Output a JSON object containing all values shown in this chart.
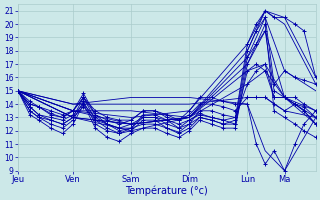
{
  "title": "Température (°c)",
  "bg_color": "#cce8e8",
  "grid_color": "#aacccc",
  "line_color": "#0000aa",
  "ylim": [
    9,
    21.5
  ],
  "yticks": [
    9,
    10,
    11,
    12,
    13,
    14,
    15,
    16,
    17,
    18,
    19,
    20,
    21
  ],
  "day_labels": [
    "Jeu",
    "Ven",
    "Sam",
    "Dim",
    "Lun",
    "Ma"
  ],
  "day_x": [
    0,
    0.185,
    0.38,
    0.575,
    0.77,
    0.895
  ],
  "series": [
    {
      "x": [
        0.0,
        0.185,
        0.38,
        0.575,
        0.77,
        0.83,
        0.895,
        1.0
      ],
      "y": [
        15.0,
        13.5,
        13.0,
        13.5,
        18.5,
        21.0,
        20.5,
        16.0
      ]
    },
    {
      "x": [
        0.0,
        0.185,
        0.38,
        0.575,
        0.77,
        0.83,
        0.895,
        1.0
      ],
      "y": [
        15.0,
        13.0,
        12.5,
        13.0,
        18.0,
        21.0,
        20.0,
        15.5
      ]
    },
    {
      "x": [
        0.0,
        0.185,
        0.38,
        0.575,
        0.77,
        0.83,
        0.895,
        1.0
      ],
      "y": [
        15.0,
        13.0,
        12.5,
        13.0,
        17.5,
        20.5,
        16.5,
        15.0
      ]
    },
    {
      "x": [
        0.0,
        0.185,
        0.38,
        0.575,
        0.77,
        0.83,
        0.895,
        1.0
      ],
      "y": [
        15.0,
        13.0,
        12.0,
        13.0,
        17.0,
        19.5,
        14.5,
        13.5
      ]
    },
    {
      "x": [
        0.0,
        0.185,
        0.38,
        0.575,
        0.77,
        0.83,
        0.895,
        1.0
      ],
      "y": [
        15.0,
        13.5,
        12.5,
        13.0,
        16.5,
        17.0,
        14.5,
        13.0
      ]
    },
    {
      "x": [
        0.0,
        0.185,
        0.38,
        0.575,
        0.77,
        0.83,
        0.895,
        1.0
      ],
      "y": [
        15.0,
        13.5,
        13.5,
        13.0,
        15.5,
        16.5,
        14.5,
        12.5
      ]
    },
    {
      "x": [
        0.0,
        0.185,
        0.38,
        0.575,
        0.77,
        0.83,
        0.895,
        1.0
      ],
      "y": [
        15.0,
        14.0,
        14.0,
        14.0,
        14.5,
        14.5,
        13.5,
        13.0
      ]
    },
    {
      "x": [
        0.0,
        0.185,
        0.38,
        0.575,
        0.77,
        0.83,
        0.895,
        1.0
      ],
      "y": [
        15.0,
        14.0,
        14.5,
        14.5,
        14.0,
        10.5,
        9.0,
        13.0
      ]
    }
  ],
  "detail_series": [
    {
      "x": [
        0.0,
        0.04,
        0.07,
        0.11,
        0.15,
        0.185,
        0.22,
        0.26,
        0.3,
        0.34,
        0.38,
        0.42,
        0.46,
        0.5,
        0.54,
        0.575,
        0.61,
        0.65,
        0.69,
        0.73,
        0.77,
        0.8,
        0.83,
        0.86,
        0.895,
        0.93,
        0.96,
        1.0
      ],
      "y": [
        15.0,
        14.2,
        13.8,
        13.3,
        13.0,
        13.5,
        14.8,
        13.2,
        12.5,
        12.2,
        12.2,
        13.0,
        13.0,
        12.5,
        12.2,
        12.8,
        13.3,
        13.0,
        12.8,
        13.0,
        18.5,
        20.0,
        21.0,
        20.5,
        20.5,
        20.0,
        19.5,
        16.0
      ]
    },
    {
      "x": [
        0.0,
        0.04,
        0.07,
        0.11,
        0.15,
        0.185,
        0.22,
        0.26,
        0.3,
        0.34,
        0.38,
        0.42,
        0.46,
        0.5,
        0.54,
        0.575,
        0.61,
        0.65,
        0.69,
        0.73,
        0.77,
        0.8,
        0.83,
        0.86,
        0.895,
        0.93,
        0.96,
        1.0
      ],
      "y": [
        15.0,
        13.8,
        13.2,
        12.8,
        12.5,
        13.0,
        14.5,
        12.8,
        12.2,
        11.8,
        12.0,
        12.8,
        12.8,
        12.2,
        11.9,
        12.5,
        13.0,
        12.8,
        12.5,
        12.8,
        18.0,
        19.5,
        20.5,
        15.5,
        16.5,
        16.0,
        15.8,
        15.5
      ]
    },
    {
      "x": [
        0.0,
        0.04,
        0.07,
        0.11,
        0.15,
        0.185,
        0.22,
        0.26,
        0.3,
        0.34,
        0.38,
        0.42,
        0.46,
        0.5,
        0.54,
        0.575,
        0.61,
        0.65,
        0.69,
        0.73,
        0.77,
        0.8,
        0.83,
        0.86,
        0.895,
        0.93,
        0.96,
        1.0
      ],
      "y": [
        15.0,
        13.5,
        13.0,
        12.5,
        12.2,
        12.8,
        14.2,
        12.5,
        12.0,
        11.8,
        12.2,
        12.5,
        12.5,
        12.2,
        11.8,
        12.2,
        13.0,
        12.8,
        12.5,
        12.5,
        17.5,
        18.5,
        19.5,
        15.0,
        14.5,
        14.5,
        14.0,
        13.5
      ]
    },
    {
      "x": [
        0.0,
        0.04,
        0.07,
        0.11,
        0.15,
        0.185,
        0.22,
        0.26,
        0.3,
        0.34,
        0.38,
        0.42,
        0.46,
        0.5,
        0.54,
        0.575,
        0.61,
        0.65,
        0.69,
        0.73,
        0.77,
        0.8,
        0.83,
        0.86,
        0.895,
        0.93,
        0.96,
        1.0
      ],
      "y": [
        15.0,
        13.2,
        12.8,
        12.2,
        11.8,
        12.5,
        14.0,
        12.2,
        11.5,
        11.2,
        11.8,
        12.2,
        12.2,
        11.8,
        11.5,
        12.0,
        12.8,
        12.5,
        12.2,
        12.2,
        17.0,
        18.5,
        20.0,
        13.5,
        13.0,
        12.5,
        12.0,
        11.5
      ]
    },
    {
      "x": [
        0.0,
        0.04,
        0.07,
        0.11,
        0.15,
        0.185,
        0.22,
        0.26,
        0.3,
        0.34,
        0.38,
        0.42,
        0.46,
        0.5,
        0.54,
        0.575,
        0.61,
        0.65,
        0.69,
        0.73,
        0.77,
        0.8,
        0.83,
        0.86,
        0.895,
        0.93,
        0.96,
        1.0
      ],
      "y": [
        15.0,
        13.5,
        13.0,
        12.8,
        12.5,
        13.0,
        13.8,
        12.8,
        12.5,
        12.2,
        12.5,
        13.0,
        13.0,
        12.8,
        12.5,
        12.8,
        13.2,
        13.0,
        12.8,
        12.5,
        16.5,
        17.0,
        16.5,
        14.5,
        14.5,
        14.0,
        13.5,
        12.5
      ]
    },
    {
      "x": [
        0.0,
        0.04,
        0.07,
        0.11,
        0.15,
        0.185,
        0.22,
        0.26,
        0.3,
        0.34,
        0.38,
        0.42,
        0.46,
        0.5,
        0.54,
        0.575,
        0.61,
        0.65,
        0.69,
        0.73,
        0.77,
        0.8,
        0.83,
        0.86,
        0.895,
        0.93,
        0.96,
        1.0
      ],
      "y": [
        15.0,
        13.8,
        13.2,
        13.0,
        12.8,
        13.2,
        14.0,
        13.0,
        12.5,
        12.0,
        12.2,
        13.2,
        13.2,
        12.8,
        12.2,
        12.5,
        13.5,
        13.5,
        13.2,
        13.0,
        15.5,
        16.5,
        17.0,
        14.5,
        14.5,
        14.0,
        13.5,
        12.5
      ]
    },
    {
      "x": [
        0.0,
        0.04,
        0.07,
        0.11,
        0.15,
        0.185,
        0.22,
        0.26,
        0.3,
        0.34,
        0.38,
        0.42,
        0.46,
        0.5,
        0.54,
        0.575,
        0.61,
        0.65,
        0.69,
        0.73,
        0.77,
        0.8,
        0.83,
        0.86,
        0.895,
        0.93,
        0.96,
        1.0
      ],
      "y": [
        15.0,
        14.0,
        13.8,
        13.5,
        13.2,
        13.5,
        14.5,
        13.5,
        13.0,
        12.8,
        12.8,
        13.5,
        13.5,
        13.2,
        12.8,
        13.2,
        14.0,
        14.0,
        13.8,
        13.5,
        14.5,
        14.5,
        14.5,
        14.0,
        13.5,
        14.0,
        13.8,
        13.0
      ]
    },
    {
      "x": [
        0.0,
        0.04,
        0.07,
        0.11,
        0.15,
        0.185,
        0.22,
        0.26,
        0.3,
        0.34,
        0.38,
        0.42,
        0.46,
        0.5,
        0.54,
        0.575,
        0.61,
        0.65,
        0.69,
        0.73,
        0.77,
        0.8,
        0.83,
        0.86,
        0.895,
        0.93,
        0.96,
        1.0
      ],
      "y": [
        15.0,
        14.0,
        13.8,
        13.2,
        13.0,
        13.5,
        14.5,
        13.2,
        12.8,
        12.5,
        12.8,
        13.5,
        13.5,
        13.0,
        12.8,
        13.5,
        14.5,
        14.5,
        14.2,
        14.0,
        14.0,
        11.0,
        9.5,
        10.5,
        9.0,
        11.0,
        12.5,
        13.5
      ]
    }
  ]
}
